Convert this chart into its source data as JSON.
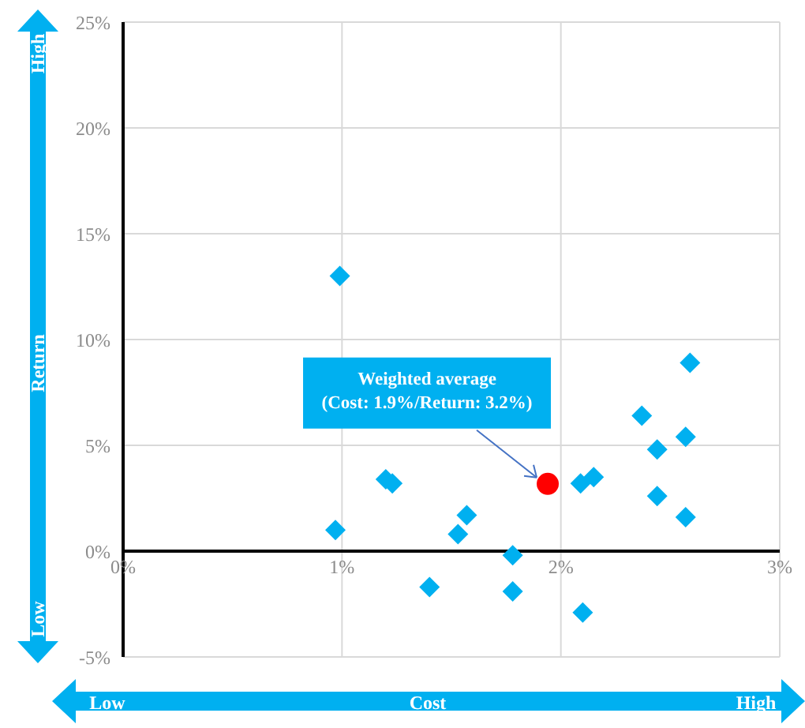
{
  "chart_data": {
    "type": "scatter",
    "xlabel": "Cost",
    "ylabel": "Return",
    "xlim": [
      0,
      3
    ],
    "xticks": [
      {
        "value": 0,
        "label": "0%"
      },
      {
        "value": 1,
        "label": "1%"
      },
      {
        "value": 2,
        "label": "2%"
      },
      {
        "value": 3,
        "label": "3%"
      }
    ],
    "ylim": [
      -5,
      25
    ],
    "yticks": [
      {
        "value": -5,
        "label": "-5%"
      },
      {
        "value": 0,
        "label": "0%"
      },
      {
        "value": 5,
        "label": "5%"
      },
      {
        "value": 10,
        "label": "10%"
      },
      {
        "value": 15,
        "label": "15%"
      },
      {
        "value": 20,
        "label": "20%"
      },
      {
        "value": 25,
        "label": "25%"
      }
    ],
    "grid": true,
    "series": [
      {
        "color": "#00b0f0",
        "marker": "diamond",
        "x": [
          0.99,
          2.59,
          2.37,
          2.57,
          2.44,
          1.2,
          1.23,
          2.09,
          2.15,
          2.44,
          2.57,
          0.97,
          1.57,
          1.53,
          1.78,
          1.4,
          1.78,
          2.1
        ],
        "values": [
          13.0,
          8.9,
          6.4,
          5.4,
          4.8,
          3.4,
          3.2,
          3.2,
          3.5,
          2.6,
          1.6,
          1.0,
          1.7,
          0.8,
          -0.2,
          -1.7,
          -1.9,
          -2.9
        ]
      },
      {
        "color": "#ff0000",
        "marker": "circle",
        "x": [
          1.94
        ],
        "values": [
          3.18
        ]
      }
    ],
    "annotations": [
      {
        "text": "Weighted average\n(Cost: 1.9%/Return: 3.2%)",
        "x": 1.94,
        "y": 3.18
      },
      "High",
      "Low",
      "Low",
      "High"
    ]
  }
}
